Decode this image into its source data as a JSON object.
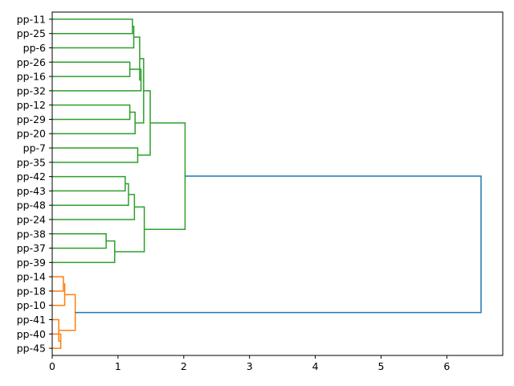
{
  "chart_data": {
    "type": "dendrogram",
    "orientation": "horizontal-left",
    "title": "",
    "xlabel": "",
    "ylabel": "",
    "xlim": [
      0,
      6.85
    ],
    "xticks": [
      0,
      1,
      2,
      3,
      4,
      5,
      6
    ],
    "grid": false,
    "leaves": [
      "pp-11",
      "pp-25",
      "pp-6",
      "pp-26",
      "pp-16",
      "pp-32",
      "pp-12",
      "pp-29",
      "pp-20",
      "pp-7",
      "pp-35",
      "pp-42",
      "pp-43",
      "pp-48",
      "pp-24",
      "pp-38",
      "pp-37",
      "pp-39",
      "pp-14",
      "pp-18",
      "pp-10",
      "pp-41",
      "pp-40",
      "pp-45"
    ],
    "colors": {
      "cluster_a": "#2ca02c",
      "cluster_b": "#ff7f0e",
      "root": "#1f77b4"
    },
    "merges": [
      {
        "a": "pp-11",
        "b": "pp-25",
        "height": 1.22,
        "color": "cluster_a"
      },
      {
        "a": 0,
        "b": "pp-6",
        "height": 1.24,
        "color": "cluster_a"
      },
      {
        "a": "pp-26",
        "b": "pp-16",
        "height": 1.18,
        "color": "cluster_a"
      },
      {
        "a": 2,
        "b": "pp-32",
        "height": 1.35,
        "color": "cluster_a"
      },
      {
        "a": 1,
        "b": 3,
        "height": 1.33,
        "color": "cluster_a"
      },
      {
        "a": "pp-12",
        "b": "pp-29",
        "height": 1.18,
        "color": "cluster_a"
      },
      {
        "a": 5,
        "b": "pp-20",
        "height": 1.26,
        "color": "cluster_a"
      },
      {
        "a": 4,
        "b": 6,
        "height": 1.39,
        "color": "cluster_a"
      },
      {
        "a": "pp-7",
        "b": "pp-35",
        "height": 1.3,
        "color": "cluster_a"
      },
      {
        "a": 7,
        "b": 8,
        "height": 1.49,
        "color": "cluster_a"
      },
      {
        "a": "pp-42",
        "b": "pp-43",
        "height": 1.11,
        "color": "cluster_a"
      },
      {
        "a": 10,
        "b": "pp-48",
        "height": 1.16,
        "color": "cluster_a"
      },
      {
        "a": 11,
        "b": "pp-24",
        "height": 1.25,
        "color": "cluster_a"
      },
      {
        "a": "pp-38",
        "b": "pp-37",
        "height": 0.82,
        "color": "cluster_a"
      },
      {
        "a": 13,
        "b": "pp-39",
        "height": 0.95,
        "color": "cluster_a"
      },
      {
        "a": 12,
        "b": 14,
        "height": 1.4,
        "color": "cluster_a"
      },
      {
        "a": 9,
        "b": 15,
        "height": 2.02,
        "color": "cluster_a"
      },
      {
        "a": "pp-14",
        "b": "pp-18",
        "height": 0.17,
        "color": "cluster_b"
      },
      {
        "a": 17,
        "b": "pp-10",
        "height": 0.19,
        "color": "cluster_b"
      },
      {
        "a": "pp-40",
        "b": "pp-45",
        "height": 0.13,
        "color": "cluster_b"
      },
      {
        "a": "pp-41",
        "b": 19,
        "height": 0.1,
        "color": "cluster_b"
      },
      {
        "a": 18,
        "b": 20,
        "height": 0.35,
        "color": "cluster_b"
      },
      {
        "a": 16,
        "b": 21,
        "height": 6.52,
        "color": "root"
      }
    ]
  }
}
